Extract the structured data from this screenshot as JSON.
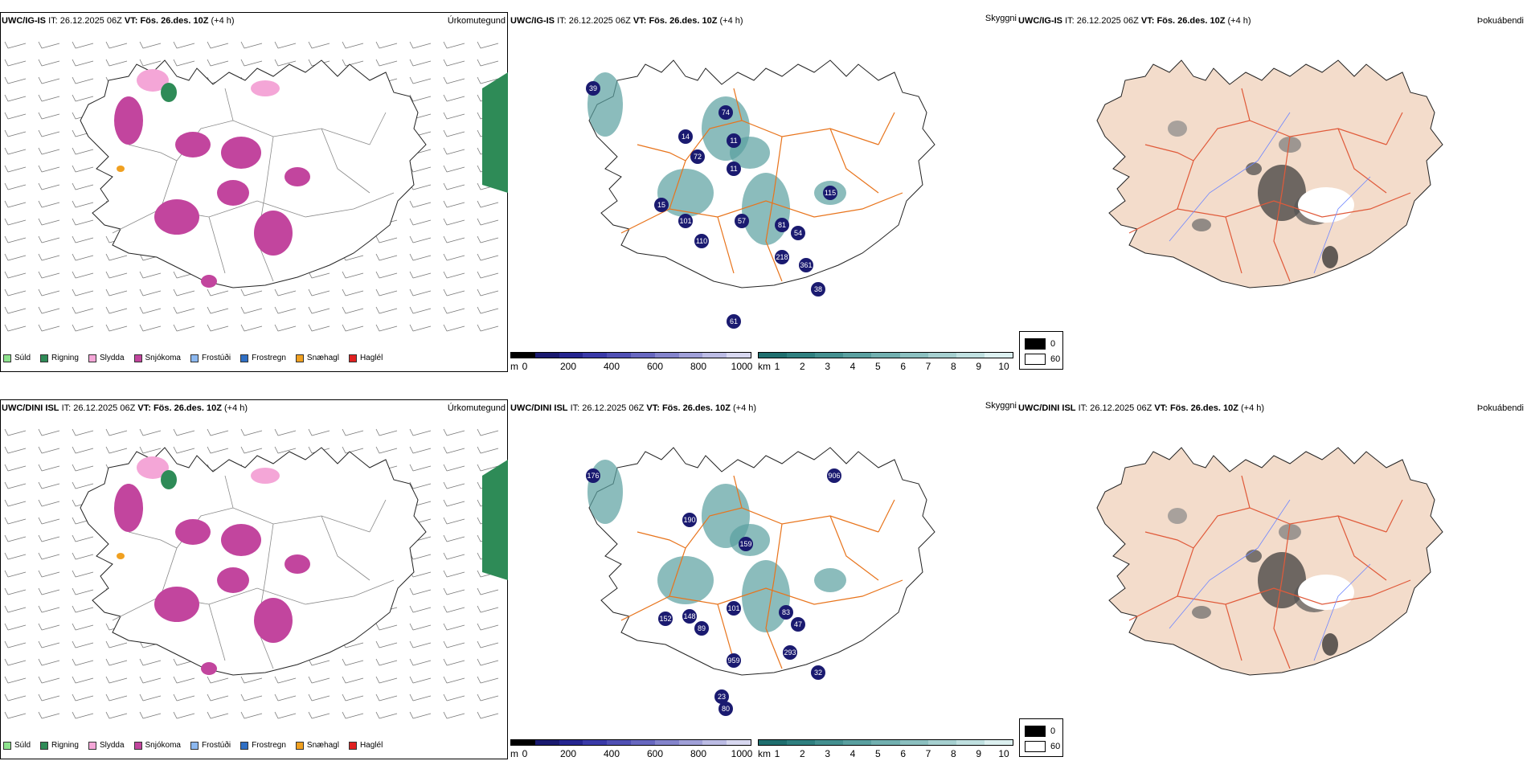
{
  "panels": [
    {
      "precip": {
        "model": "UWC/IG-IS",
        "it_label": "IT:",
        "it_value": "26.12.2025 06Z",
        "vt_label": "VT:",
        "vt_value": "Fös. 26.des. 10Z",
        "lead": "(+4 h)",
        "corner": "Úrkomutegund"
      },
      "vis": {
        "model": "UWC/IG-IS",
        "it_label": "IT:",
        "it_value": "26.12.2025 06Z",
        "vt_label": "VT:",
        "vt_value": "Fös. 26.des. 10Z",
        "lead": "(+4 h)",
        "corner": "Skyggni"
      },
      "fog": {
        "model": "UWC/IG-IS",
        "it_label": "IT:",
        "it_value": "26.12.2025 06Z",
        "vt_label": "VT:",
        "vt_value": "Fös. 26.des. 10Z",
        "lead": "(+4 h)",
        "corner": "Þokuábendi"
      },
      "vis_labels": [
        "74",
        "14",
        "11",
        "72",
        "11",
        "15",
        "101",
        "57",
        "81",
        "54",
        "110",
        "218",
        "361",
        "115",
        "38",
        "39",
        "61"
      ]
    },
    {
      "precip": {
        "model": "UWC/DINI ISL",
        "it_label": "IT:",
        "it_value": "26.12.2025 06Z",
        "vt_label": "VT:",
        "vt_value": "Fös. 26.des. 10Z",
        "lead": "(+4 h)",
        "corner": "Úrkomutegund"
      },
      "vis": {
        "model": "UWC/DINI ISL",
        "it_label": "IT:",
        "it_value": "26.12.2025 06Z",
        "vt_label": "VT:",
        "vt_value": "Fös. 26.des. 10Z",
        "lead": "(+4 h)",
        "corner": "Skyggni"
      },
      "fog": {
        "model": "UWC/DINI ISL",
        "it_label": "IT:",
        "it_value": "26.12.2025 06Z",
        "vt_label": "VT:",
        "vt_value": "Fös. 26.des. 10Z",
        "lead": "(+4 h)",
        "corner": "Þokuábendi"
      },
      "vis_labels": [
        "176",
        "190",
        "159",
        "906",
        "101",
        "148",
        "152",
        "89",
        "83",
        "47",
        "293",
        "959",
        "32",
        "80",
        "23"
      ]
    }
  ],
  "precip_legend": [
    {
      "label": "Súld",
      "color": "#8ee38e"
    },
    {
      "label": "Rigning",
      "color": "#2e8b57"
    },
    {
      "label": "Slydda",
      "color": "#f4a6d7"
    },
    {
      "label": "Snjókoma",
      "color": "#c2459e"
    },
    {
      "label": "Frostúði",
      "color": "#8cb8f0"
    },
    {
      "label": "Frostregn",
      "color": "#2f6fc4"
    },
    {
      "label": "Snæhagl",
      "color": "#f0a020"
    },
    {
      "label": "Haglél",
      "color": "#e02020"
    }
  ],
  "vis_scale_m": {
    "unit": "m",
    "ticks": [
      "0",
      "200",
      "400",
      "600",
      "800",
      "1000"
    ],
    "colors": [
      "#000000",
      "#1a1a70",
      "#262690",
      "#3a3aa8",
      "#5050b4",
      "#6868c0",
      "#8484cc",
      "#a0a0d8",
      "#bcbce4",
      "#d8d8f0"
    ]
  },
  "vis_scale_km": {
    "unit": "km",
    "ticks": [
      "1",
      "2",
      "3",
      "4",
      "5",
      "6",
      "7",
      "8",
      "9",
      "10"
    ],
    "colors": [
      "#1f6f6f",
      "#2f8080",
      "#449090",
      "#5aa0a0",
      "#72b0b0",
      "#8cc0c0",
      "#a6d0d0",
      "#c0e0e0",
      "#dcf0f0"
    ]
  },
  "fog_legend": {
    "high": "0",
    "low": "60"
  },
  "colors": {
    "precip_land": "#ffffff",
    "fog_land": "#f3dccb",
    "roads": "#e8741c",
    "rivers": "#6f86ff",
    "fog_roads": "#e05a3a"
  }
}
